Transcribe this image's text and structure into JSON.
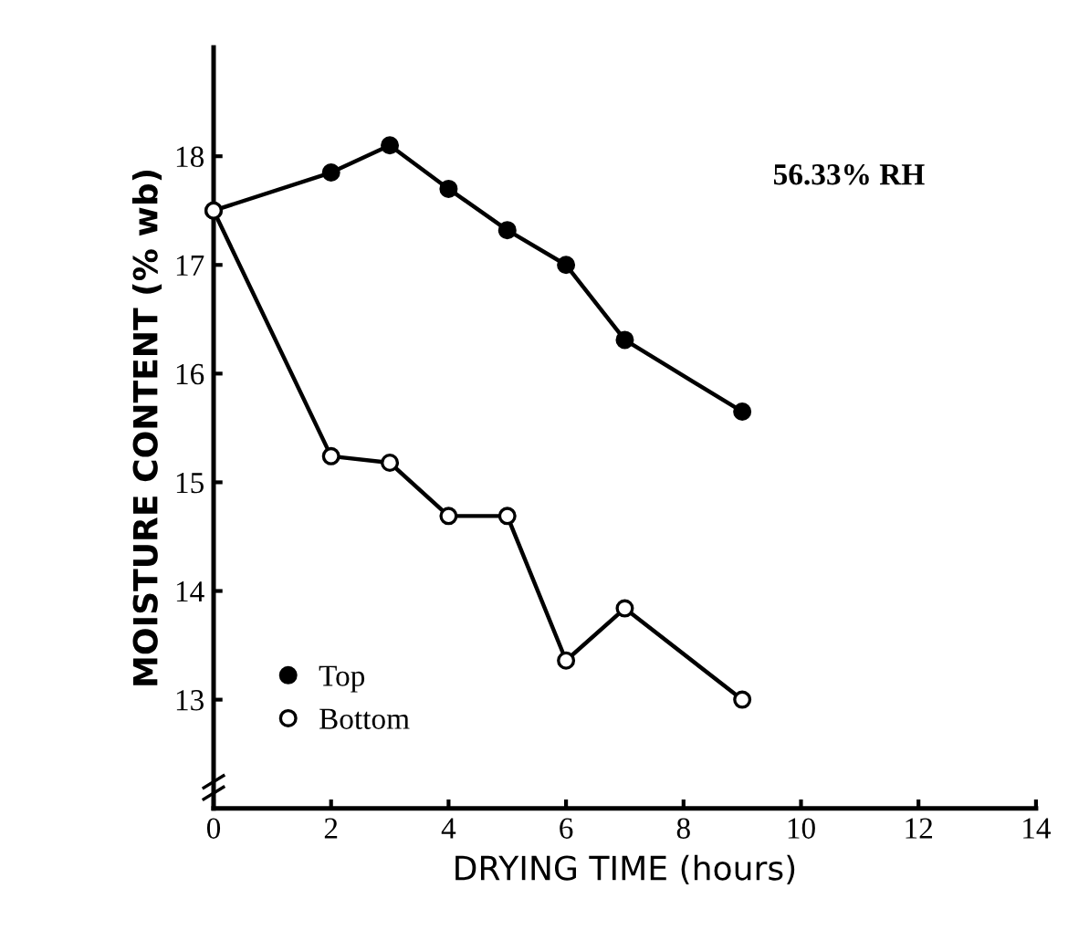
{
  "chart_data": {
    "type": "line",
    "xlabel": "DRYING TIME (hours)",
    "ylabel": "MOISTURE CONTENT (% wb)",
    "annotations": [
      "56.33% RH"
    ],
    "x": [
      0,
      2,
      3,
      4,
      5,
      6,
      7,
      9
    ],
    "series": [
      {
        "name": "Top",
        "color": "#000000",
        "marker": "circle",
        "values": [
          17.5,
          17.85,
          18.1,
          17.7,
          17.32,
          17.0,
          16.31,
          15.65
        ]
      },
      {
        "name": "Bottom",
        "color": "#000000",
        "marker": "circle",
        "values": [
          17.5,
          15.24,
          15.18,
          14.69,
          14.69,
          13.36,
          13.84,
          13.0
        ]
      }
    ],
    "xlim": [
      0,
      14
    ],
    "xticks": [
      0,
      2,
      4,
      6,
      8,
      10,
      12,
      14
    ],
    "ylim": [
      12,
      19
    ],
    "yticks": [
      13,
      14,
      15,
      16,
      17,
      18
    ],
    "grid": false,
    "legend": "bottom left",
    "line_style": "solid"
  }
}
